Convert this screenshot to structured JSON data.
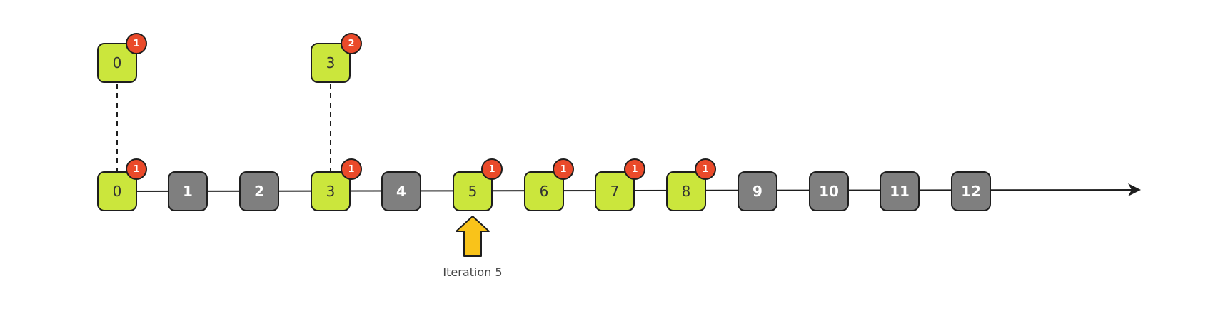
{
  "timeline": {
    "nodes": [
      {
        "label": "0",
        "state": "active",
        "badge": "1"
      },
      {
        "label": "1",
        "state": "inactive"
      },
      {
        "label": "2",
        "state": "inactive"
      },
      {
        "label": "3",
        "state": "active",
        "badge": "1"
      },
      {
        "label": "4",
        "state": "inactive"
      },
      {
        "label": "5",
        "state": "active",
        "badge": "1"
      },
      {
        "label": "6",
        "state": "active",
        "badge": "1"
      },
      {
        "label": "7",
        "state": "active",
        "badge": "1"
      },
      {
        "label": "8",
        "state": "active",
        "badge": "1"
      },
      {
        "label": "9",
        "state": "inactive"
      },
      {
        "label": "10",
        "state": "inactive"
      },
      {
        "label": "11",
        "state": "inactive"
      },
      {
        "label": "12",
        "state": "inactive"
      }
    ]
  },
  "stacked": [
    {
      "label": "0",
      "badge": "1",
      "above_node": "0"
    },
    {
      "label": "3",
      "badge": "2",
      "above_node": "3"
    }
  ],
  "pointer": {
    "label": "Iteration 5",
    "points_to_node": "5"
  },
  "colors": {
    "active": "#cbe63c",
    "inactive": "#7f7f7f",
    "badge": "#ea4a2a",
    "pointer": "#f9c31a",
    "outline": "#1e1e1e"
  }
}
